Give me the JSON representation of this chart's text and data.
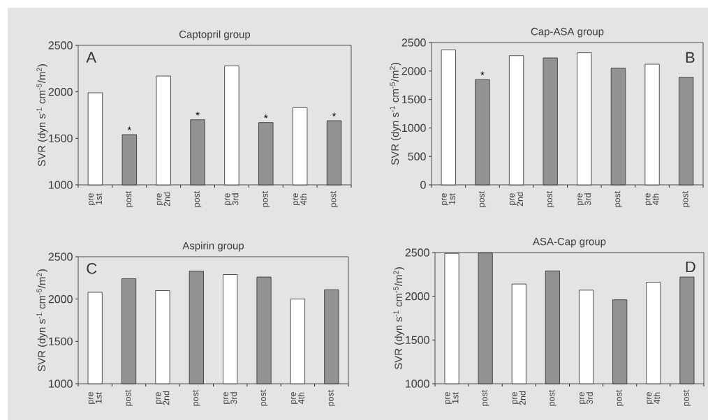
{
  "chart_data": [
    {
      "type": "bar",
      "title": "Captopril group",
      "ylabel": "SVR (dyn s$^{-1}$ cm$^{-5}$/m$^{2}$)",
      "categories": [
        "pre 1st",
        "post",
        "pre 2nd",
        "post",
        "pre 3rd",
        "post",
        "pre 4th",
        "post"
      ],
      "values": [
        1990,
        1540,
        2170,
        1700,
        2280,
        1670,
        1830,
        1690
      ],
      "colors": [
        "#ffffff",
        "#939393",
        "#ffffff",
        "#939393",
        "#ffffff",
        "#939393",
        "#ffffff",
        "#939393"
      ],
      "value_labels": [
        null,
        "*",
        null,
        "*",
        null,
        "*",
        null,
        "*"
      ],
      "ylim": [
        1000,
        2500
      ],
      "yticks": [
        1000,
        1500,
        2000,
        2500
      ],
      "annotations": [
        "A"
      ]
    },
    {
      "type": "bar",
      "title": "Cap-ASA group",
      "ylabel": "SVR (dyn s$^{-1}$ cm$^{-5}$/m$^{2}$)",
      "categories": [
        "pre 1st",
        "post",
        "pre 2nd",
        "post",
        "pre 3rd",
        "post",
        "pre 4th",
        "post"
      ],
      "values": [
        2370,
        1850,
        2270,
        2230,
        2320,
        2050,
        2120,
        1890
      ],
      "colors": [
        "#ffffff",
        "#939393",
        "#ffffff",
        "#939393",
        "#ffffff",
        "#939393",
        "#ffffff",
        "#939393"
      ],
      "value_labels": [
        null,
        "*",
        null,
        null,
        null,
        null,
        null,
        null
      ],
      "ylim": [
        0,
        2500
      ],
      "yticks": [
        0,
        500,
        1000,
        1500,
        2000,
        2500
      ],
      "annotations": [
        "B"
      ]
    },
    {
      "type": "bar",
      "title": "Aspirin group",
      "ylabel": "SVR (dyn s$^{-1}$ cm$^{-5}$/m$^{2}$)",
      "categories": [
        "pre 1st",
        "post",
        "pre 2nd",
        "post",
        "pre 3rd",
        "post",
        "pre 4th",
        "post"
      ],
      "values": [
        2080,
        2240,
        2100,
        2330,
        2290,
        2260,
        2000,
        2110
      ],
      "colors": [
        "#ffffff",
        "#939393",
        "#ffffff",
        "#939393",
        "#ffffff",
        "#939393",
        "#ffffff",
        "#939393"
      ],
      "ylim": [
        1000,
        2500
      ],
      "yticks": [
        1000,
        1500,
        2000,
        2500
      ],
      "annotations": [
        "C"
      ]
    },
    {
      "type": "bar",
      "title": "ASA-Cap group",
      "ylabel": "SVR (dyn s$^{-1}$ cm$^{-5}$/m$^{2}$)",
      "categories": [
        "pre 1st",
        "post",
        "pre 2nd",
        "post",
        "pre 3rd",
        "post",
        "pre 4th",
        "post"
      ],
      "values": [
        2490,
        2495,
        2140,
        2290,
        2070,
        1960,
        2160,
        2220
      ],
      "colors": [
        "#ffffff",
        "#939393",
        "#ffffff",
        "#939393",
        "#ffffff",
        "#939393",
        "#ffffff",
        "#939393"
      ],
      "ylim": [
        1000,
        2500
      ],
      "yticks": [
        1000,
        1500,
        2000,
        2500
      ],
      "annotations": [
        "D"
      ]
    }
  ]
}
